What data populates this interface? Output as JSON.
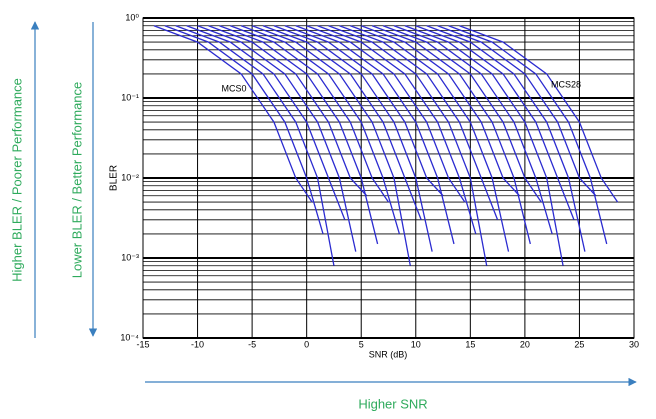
{
  "chart_data": {
    "type": "line",
    "log_y": true,
    "grid": true,
    "color": "#2b2bd0",
    "xlabel": "SNR (dB)",
    "ylabel": "BLER",
    "xlim": [
      -15,
      30
    ],
    "xticks": [
      -15,
      -10,
      -5,
      0,
      5,
      10,
      15,
      20,
      25,
      30
    ],
    "ylim": [
      0.0001,
      1
    ],
    "yticks": [
      {
        "value": 1,
        "label": "10⁰"
      },
      {
        "value": 0.1,
        "label": "10⁻¹"
      },
      {
        "value": 0.01,
        "label": "10⁻²"
      },
      {
        "value": 0.001,
        "label": "10⁻³"
      },
      {
        "value": 0.0001,
        "label": "10⁻⁴"
      }
    ],
    "yminorticks": [
      0.0002,
      0.0003,
      0.0004,
      0.0005,
      0.0006,
      0.0007,
      0.0008,
      0.0009,
      0.002,
      0.003,
      0.004,
      0.005,
      0.006,
      0.007,
      0.008,
      0.009,
      0.02,
      0.03,
      0.04,
      0.05,
      0.06,
      0.07,
      0.08,
      0.09,
      0.2,
      0.3,
      0.4,
      0.5,
      0.6,
      0.7,
      0.8,
      0.9
    ],
    "annotations": [
      "MCS0",
      "MCS28"
    ],
    "side_notes": [
      "Higher  BLER / Poorer Performance",
      "Lower  BLER / Better Performance",
      "Higher SNR"
    ],
    "series": [
      {
        "x": [
          -14,
          -10,
          -6,
          -3,
          -1,
          0.5
        ],
        "values": [
          0.8,
          0.5,
          0.2,
          0.05,
          0.01,
          0.005
        ]
      },
      {
        "x": [
          -13,
          -9,
          -5,
          -2,
          0,
          1.5
        ],
        "values": [
          0.8,
          0.5,
          0.2,
          0.05,
          0.01,
          0.002
        ]
      },
      {
        "x": [
          -12,
          -8,
          -4,
          -1,
          1,
          2.5
        ],
        "values": [
          0.8,
          0.5,
          0.2,
          0.05,
          0.01,
          0.0008
        ]
      },
      {
        "x": [
          -11,
          -7,
          -3,
          0,
          2,
          3.5
        ],
        "values": [
          0.8,
          0.5,
          0.2,
          0.05,
          0.01,
          0.003
        ]
      },
      {
        "x": [
          -10,
          -6,
          -2,
          1,
          3,
          4.5
        ],
        "values": [
          0.8,
          0.5,
          0.2,
          0.05,
          0.01,
          0.0012
        ]
      },
      {
        "x": [
          -9,
          -5,
          -1,
          2,
          4,
          5.5
        ],
        "values": [
          0.8,
          0.5,
          0.2,
          0.05,
          0.01,
          0.006
        ]
      },
      {
        "x": [
          -8,
          -4,
          0,
          3,
          5,
          6.5
        ],
        "values": [
          0.8,
          0.5,
          0.2,
          0.05,
          0.01,
          0.0015
        ]
      },
      {
        "x": [
          -7,
          -3,
          1,
          4,
          6,
          7.5
        ],
        "values": [
          0.8,
          0.5,
          0.2,
          0.05,
          0.01,
          0.005
        ]
      },
      {
        "x": [
          -6,
          -2,
          2,
          5,
          7,
          8.5
        ],
        "values": [
          0.8,
          0.5,
          0.2,
          0.05,
          0.01,
          0.002
        ]
      },
      {
        "x": [
          -5,
          -1,
          3,
          6,
          8,
          9.5
        ],
        "values": [
          0.8,
          0.5,
          0.2,
          0.05,
          0.01,
          0.0008
        ]
      },
      {
        "x": [
          -4,
          0,
          4,
          7,
          9,
          10.5
        ],
        "values": [
          0.8,
          0.5,
          0.2,
          0.05,
          0.01,
          0.003
        ]
      },
      {
        "x": [
          -3,
          1,
          5,
          8,
          10,
          11.5
        ],
        "values": [
          0.8,
          0.5,
          0.2,
          0.05,
          0.01,
          0.0012
        ]
      },
      {
        "x": [
          -2,
          2,
          6,
          9,
          11,
          12.5
        ],
        "values": [
          0.8,
          0.5,
          0.2,
          0.05,
          0.01,
          0.006
        ]
      },
      {
        "x": [
          -1,
          3,
          7,
          10,
          12,
          13.5
        ],
        "values": [
          0.8,
          0.5,
          0.2,
          0.05,
          0.01,
          0.0015
        ]
      },
      {
        "x": [
          0,
          4,
          8,
          11,
          13,
          14.5
        ],
        "values": [
          0.8,
          0.5,
          0.2,
          0.05,
          0.01,
          0.005
        ]
      },
      {
        "x": [
          1,
          5,
          9,
          12,
          14,
          15.5
        ],
        "values": [
          0.8,
          0.5,
          0.2,
          0.05,
          0.01,
          0.002
        ]
      },
      {
        "x": [
          2,
          6,
          10,
          13,
          15,
          16.5
        ],
        "values": [
          0.8,
          0.5,
          0.2,
          0.05,
          0.01,
          0.0008
        ]
      },
      {
        "x": [
          3,
          7,
          11,
          14,
          16,
          17.5
        ],
        "values": [
          0.8,
          0.5,
          0.2,
          0.05,
          0.01,
          0.003
        ]
      },
      {
        "x": [
          4,
          8,
          12,
          15,
          17,
          18.5
        ],
        "values": [
          0.8,
          0.5,
          0.2,
          0.05,
          0.01,
          0.0012
        ]
      },
      {
        "x": [
          5,
          9,
          13,
          16,
          18,
          19.5
        ],
        "values": [
          0.8,
          0.5,
          0.2,
          0.05,
          0.01,
          0.006
        ]
      },
      {
        "x": [
          6,
          10,
          14,
          17,
          19,
          20.5
        ],
        "values": [
          0.8,
          0.5,
          0.2,
          0.05,
          0.01,
          0.0015
        ]
      },
      {
        "x": [
          7,
          11,
          15,
          18,
          20,
          21.5
        ],
        "values": [
          0.8,
          0.5,
          0.2,
          0.05,
          0.01,
          0.005
        ]
      },
      {
        "x": [
          8,
          12,
          16,
          19,
          21,
          22.5
        ],
        "values": [
          0.8,
          0.5,
          0.2,
          0.05,
          0.01,
          0.002
        ]
      },
      {
        "x": [
          9,
          13,
          17,
          20,
          22,
          23.5
        ],
        "values": [
          0.8,
          0.5,
          0.2,
          0.05,
          0.01,
          0.0008
        ]
      },
      {
        "x": [
          10,
          14,
          18,
          21,
          23,
          24.5
        ],
        "values": [
          0.8,
          0.5,
          0.2,
          0.05,
          0.01,
          0.003
        ]
      },
      {
        "x": [
          11,
          15,
          19,
          22,
          24,
          25.5
        ],
        "values": [
          0.8,
          0.5,
          0.2,
          0.05,
          0.01,
          0.0012
        ]
      },
      {
        "x": [
          12,
          16,
          20,
          23,
          25,
          26.5
        ],
        "values": [
          0.8,
          0.5,
          0.2,
          0.05,
          0.01,
          0.006
        ]
      },
      {
        "x": [
          13,
          17,
          21,
          24,
          26,
          27.5
        ],
        "values": [
          0.8,
          0.5,
          0.2,
          0.05,
          0.01,
          0.0015
        ]
      },
      {
        "x": [
          14,
          18,
          22,
          25,
          27,
          28.5
        ],
        "values": [
          0.8,
          0.5,
          0.2,
          0.05,
          0.01,
          0.005
        ]
      }
    ]
  }
}
